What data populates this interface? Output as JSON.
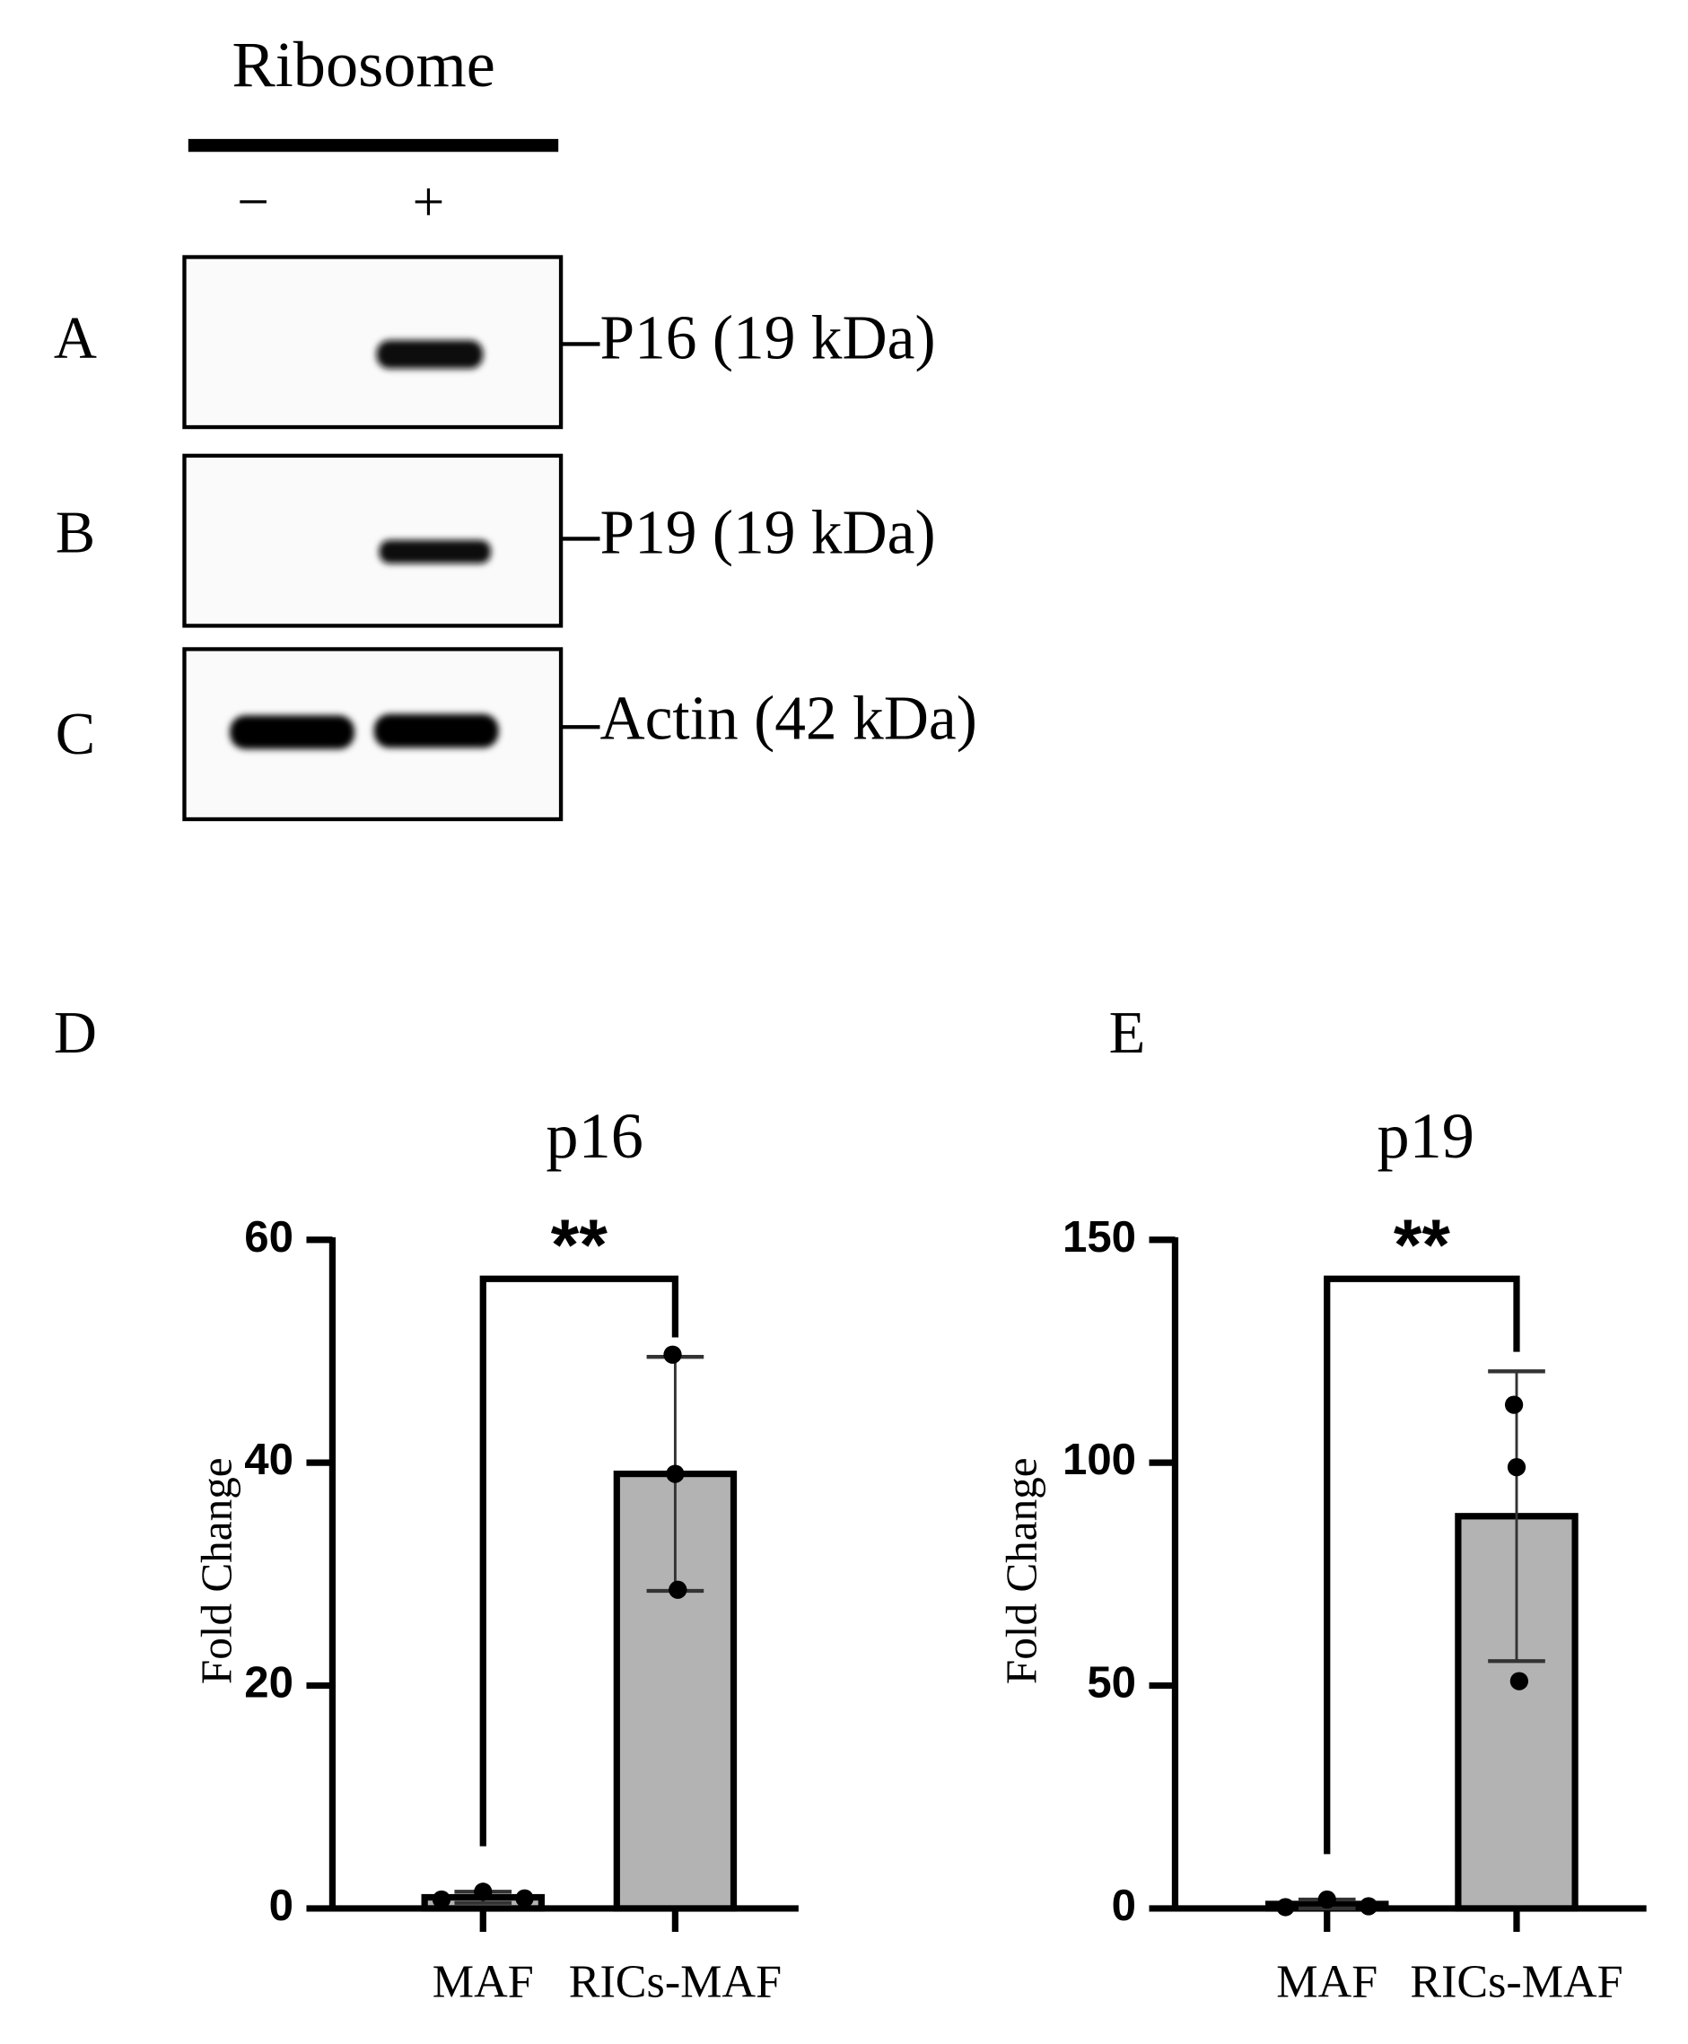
{
  "blot": {
    "title": "Ribosome",
    "lanes": [
      "−",
      "+"
    ],
    "panels": [
      {
        "label": "A",
        "band": "P16 (19 kDa)"
      },
      {
        "label": "B",
        "band": "P19 (19 kDa)"
      },
      {
        "label": "C",
        "band": "Actin (42 kDa)"
      }
    ]
  },
  "chart_data": [
    {
      "type": "bar",
      "panel_label": "D",
      "title": "p16",
      "ylabel": "Fold Change",
      "categories": [
        "MAF",
        "RICs-MAF"
      ],
      "values": [
        1,
        39
      ],
      "errors": [
        0.5,
        10.5
      ],
      "points": [
        [
          0.8,
          1.5,
          0.9
        ],
        [
          49.7,
          39,
          28.6
        ]
      ],
      "color": "#b3b3b3",
      "ylim": [
        0,
        60
      ],
      "yticks": [
        0,
        20,
        40,
        60
      ],
      "annotation": "**"
    },
    {
      "type": "bar",
      "panel_label": "E",
      "title": "p19",
      "ylabel": "Fold Change",
      "categories": [
        "MAF",
        "RICs-MAF"
      ],
      "values": [
        1,
        88
      ],
      "errors": [
        1,
        32.5
      ],
      "points": [
        [
          0.3,
          2,
          0.5
        ],
        [
          113,
          99,
          51
        ]
      ],
      "color": "#b3b3b3",
      "ylim": [
        0,
        150
      ],
      "yticks": [
        0,
        50,
        100,
        150
      ],
      "annotation": "**"
    }
  ]
}
